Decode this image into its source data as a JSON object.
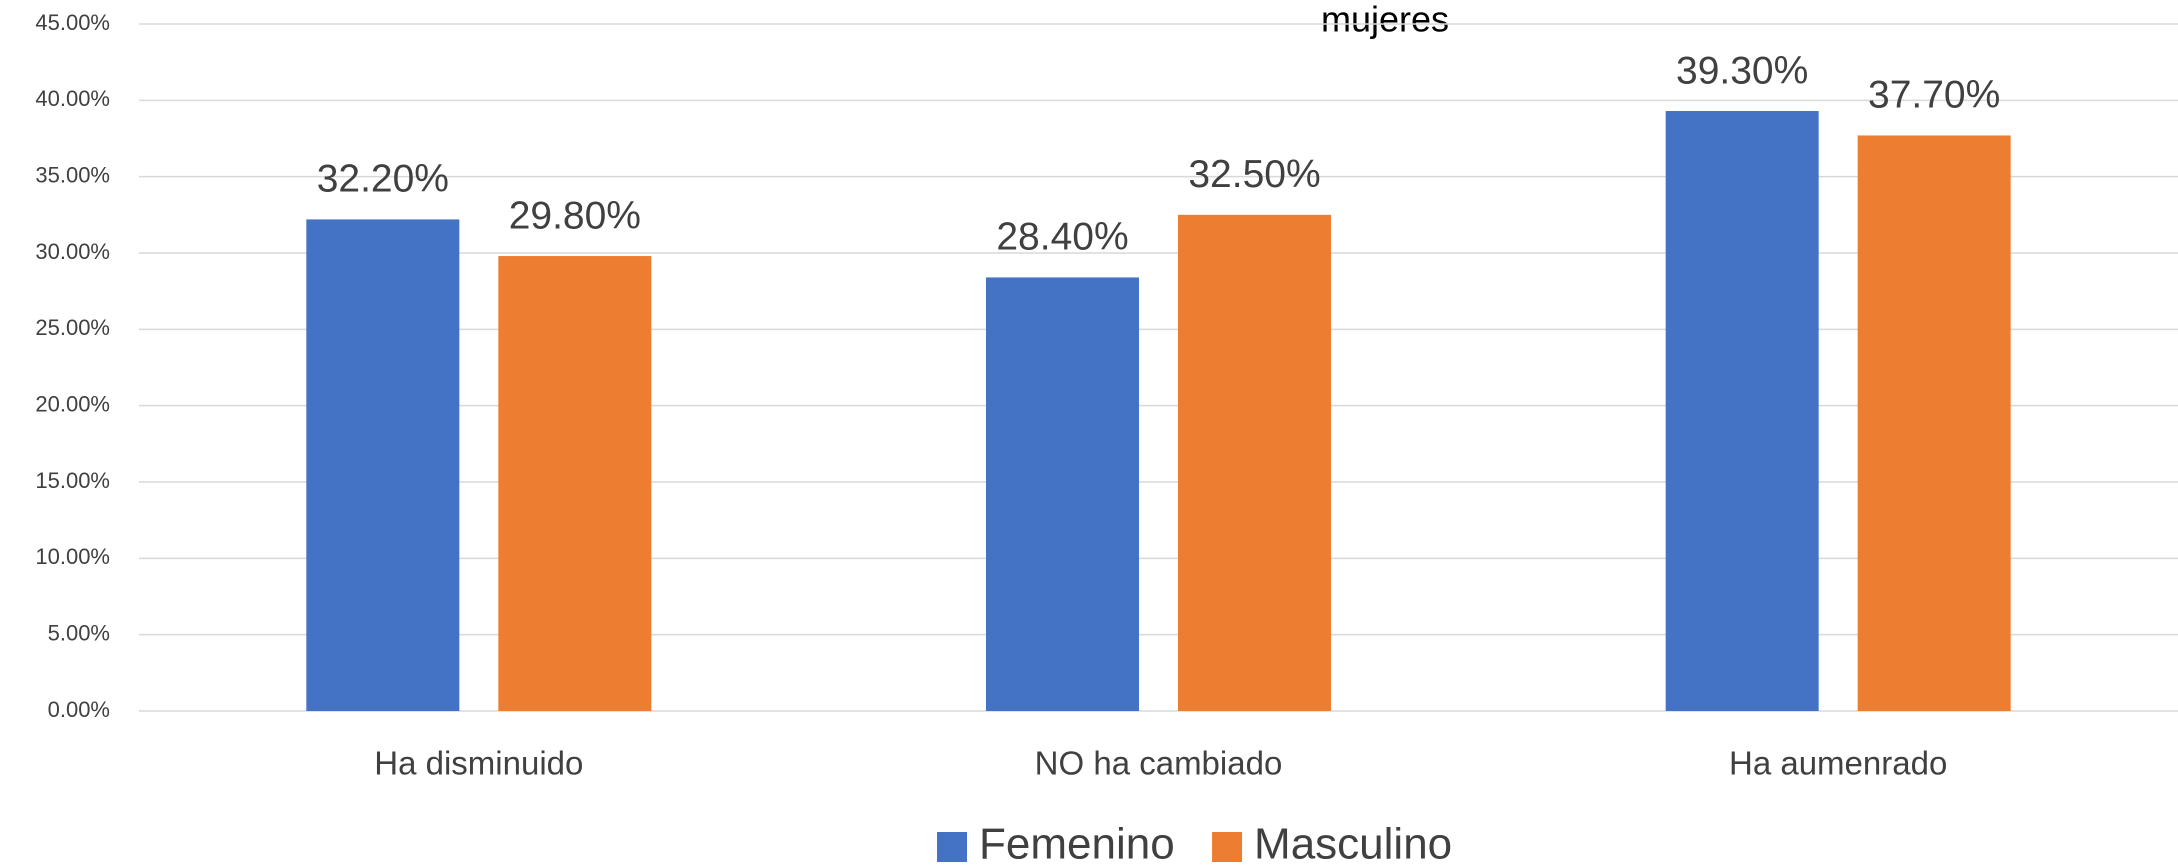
{
  "chart_data": {
    "type": "bar",
    "title": "mujeres",
    "categories": [
      "Ha disminuido",
      "NO ha cambiado",
      "Ha aumenrado"
    ],
    "series": [
      {
        "name": "Femenino",
        "color": "#4472c4",
        "values": [
          32.2,
          28.4,
          39.3
        ],
        "value_labels": [
          "32.20%",
          "28.40%",
          "39.30%"
        ]
      },
      {
        "name": "Masculino",
        "color": "#ed7d31",
        "values": [
          29.8,
          32.5,
          37.7
        ],
        "value_labels": [
          "29.80%",
          "32.50%",
          "37.70%"
        ]
      }
    ],
    "ylim": [
      0,
      45
    ],
    "yticks": [
      {
        "value": 0,
        "label": "0.00%"
      },
      {
        "value": 5,
        "label": "5.00%"
      },
      {
        "value": 10,
        "label": "10.00%"
      },
      {
        "value": 15,
        "label": "15.00%"
      },
      {
        "value": 20,
        "label": "20.00%"
      },
      {
        "value": 25,
        "label": "25.00%"
      },
      {
        "value": 30,
        "label": "30.00%"
      },
      {
        "value": 35,
        "label": "35.00%"
      },
      {
        "value": 40,
        "label": "40.00%"
      },
      {
        "value": 45,
        "label": "45.00%"
      }
    ],
    "grid": true,
    "legend": "bottom"
  }
}
